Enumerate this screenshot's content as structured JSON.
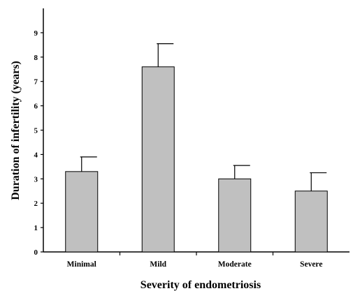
{
  "chart_data": {
    "type": "bar",
    "title": "",
    "xlabel": "Severity of endometriosis",
    "ylabel": "Duration of infertility (years)",
    "categories": [
      "Minimal",
      "Mild",
      "Moderate",
      "Severe"
    ],
    "values": [
      3.3,
      7.6,
      3.0,
      2.5
    ],
    "error_upper": [
      3.9,
      8.55,
      3.55,
      3.25
    ],
    "ylim": [
      0,
      10
    ],
    "yticks": [
      "0",
      "1",
      "2",
      "3",
      "4",
      "5",
      "6",
      "7",
      "8",
      "9"
    ],
    "grid": false,
    "colors": {
      "bar_fill": "#c0c0c0",
      "bar_stroke": "#000000"
    }
  }
}
